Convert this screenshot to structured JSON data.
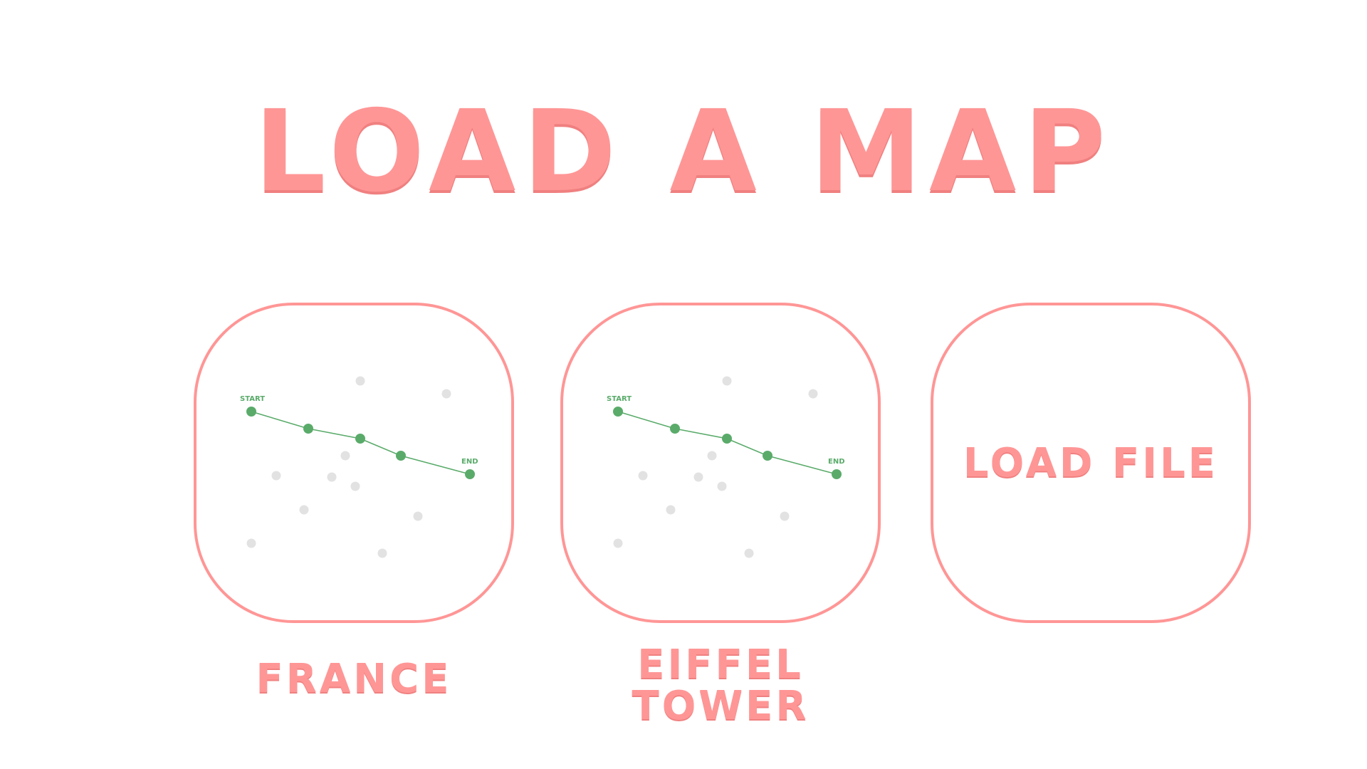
{
  "page": {
    "title": "LOAD A MAP"
  },
  "cards": [
    {
      "id": "france",
      "label_lines": [
        "FRANCE"
      ],
      "preview": {
        "start_label": "START",
        "end_label": "END"
      }
    },
    {
      "id": "eiffel-tower",
      "label_lines": [
        "EIFFEL",
        "TOWER"
      ],
      "preview": {
        "start_label": "START",
        "end_label": "END"
      }
    },
    {
      "id": "load-file",
      "button_label": "LOAD FILE"
    }
  ],
  "colors": {
    "accent": "#ff9696",
    "path": "#5aab6a",
    "node_inactive": "#e2e2e2",
    "background": "#ffffff"
  }
}
